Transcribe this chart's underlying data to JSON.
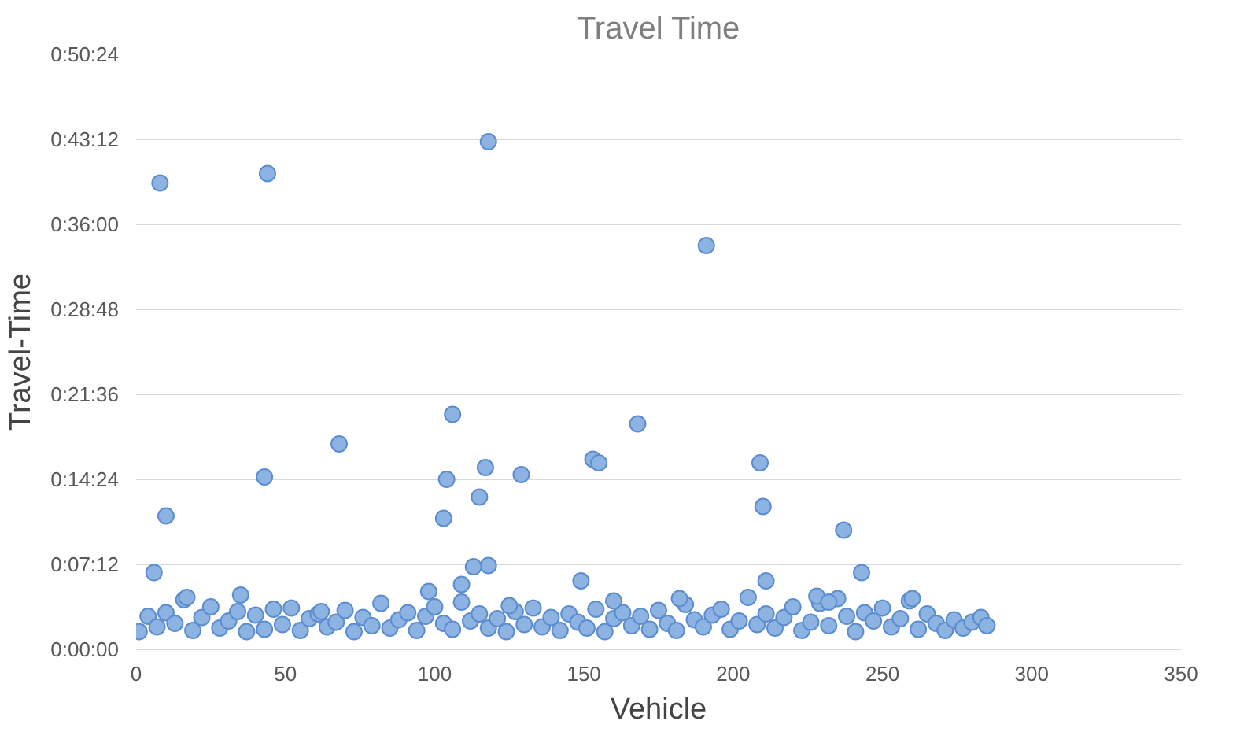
{
  "chart_data": {
    "type": "scatter",
    "title": "Travel Time",
    "xlabel": "Vehicle",
    "ylabel": "Travel-Time",
    "xlim": [
      0,
      350
    ],
    "xticks": [
      0,
      50,
      100,
      150,
      200,
      250,
      300,
      350
    ],
    "ylim": [
      0,
      50.4
    ],
    "yticks": [
      {
        "value": 0,
        "label": "0:00:00"
      },
      {
        "value": 7.2,
        "label": "0:07:12"
      },
      {
        "value": 14.4,
        "label": "0:14:24"
      },
      {
        "value": 21.6,
        "label": "0:21:36"
      },
      {
        "value": 28.8,
        "label": "0:28:48"
      },
      {
        "value": 36,
        "label": "0:36:00"
      },
      {
        "value": 43.2,
        "label": "0:43:12"
      },
      {
        "value": 50.4,
        "label": "0:50:24"
      }
    ],
    "grid": "y",
    "marker": "circle",
    "series": [
      {
        "color": "#8db3e2",
        "x": [
          8,
          44,
          118,
          191,
          10,
          43,
          68,
          106,
          104,
          103,
          117,
          115,
          129,
          118,
          113,
          153,
          155,
          168,
          209,
          210,
          237,
          6,
          149,
          243,
          211,
          109,
          1,
          4,
          7,
          10,
          13,
          16,
          19,
          22,
          25,
          28,
          31,
          34,
          37,
          40,
          43,
          46,
          49,
          52,
          55,
          58,
          61,
          64,
          67,
          70,
          73,
          76,
          79,
          82,
          85,
          88,
          91,
          94,
          97,
          100,
          103,
          106,
          109,
          112,
          115,
          118,
          121,
          124,
          127,
          130,
          133,
          136,
          139,
          142,
          145,
          148,
          151,
          154,
          157,
          160,
          163,
          166,
          169,
          172,
          175,
          178,
          181,
          184,
          187,
          190,
          193,
          196,
          199,
          202,
          205,
          208,
          211,
          214,
          217,
          220,
          223,
          226,
          229,
          232,
          235,
          238,
          241,
          244,
          247,
          250,
          253,
          256,
          259,
          262,
          265,
          268,
          271,
          274,
          277,
          280,
          283,
          285,
          17,
          35,
          62,
          98,
          125,
          160,
          182,
          228,
          232,
          260
        ],
        "values": [
          39.5,
          40.3,
          43.0,
          34.2,
          11.3,
          14.6,
          17.4,
          19.9,
          14.4,
          11.1,
          15.4,
          12.9,
          14.8,
          7.1,
          7.0,
          16.1,
          15.8,
          19.1,
          15.8,
          12.1,
          10.1,
          6.5,
          5.8,
          6.5,
          5.8,
          5.5,
          1.5,
          2.8,
          1.9,
          3.1,
          2.2,
          4.2,
          1.6,
          2.7,
          3.6,
          1.8,
          2.4,
          3.2,
          1.5,
          2.9,
          1.7,
          3.4,
          2.1,
          3.5,
          1.6,
          2.6,
          3.0,
          1.9,
          2.3,
          3.3,
          1.5,
          2.7,
          2.0,
          3.9,
          1.8,
          2.5,
          3.1,
          1.6,
          2.8,
          3.6,
          2.2,
          1.7,
          4.0,
          2.4,
          3.0,
          1.8,
          2.6,
          1.5,
          3.2,
          2.1,
          3.5,
          1.9,
          2.7,
          1.6,
          3.0,
          2.3,
          1.8,
          3.4,
          1.5,
          2.6,
          3.1,
          2.0,
          2.8,
          1.7,
          3.3,
          2.2,
          1.6,
          3.8,
          2.5,
          1.9,
          2.9,
          3.4,
          1.7,
          2.4,
          4.4,
          2.1,
          3.0,
          1.8,
          2.7,
          3.6,
          1.6,
          2.3,
          3.9,
          2.0,
          4.3,
          2.8,
          1.5,
          3.1,
          2.4,
          3.5,
          1.9,
          2.6,
          4.1,
          1.7,
          3.0,
          2.2,
          1.6,
          2.5,
          1.8,
          2.3,
          2.7,
          2.0,
          4.4,
          4.6,
          3.2,
          4.9,
          3.7,
          4.1,
          4.3,
          4.5,
          4.0,
          4.3
        ]
      }
    ]
  }
}
